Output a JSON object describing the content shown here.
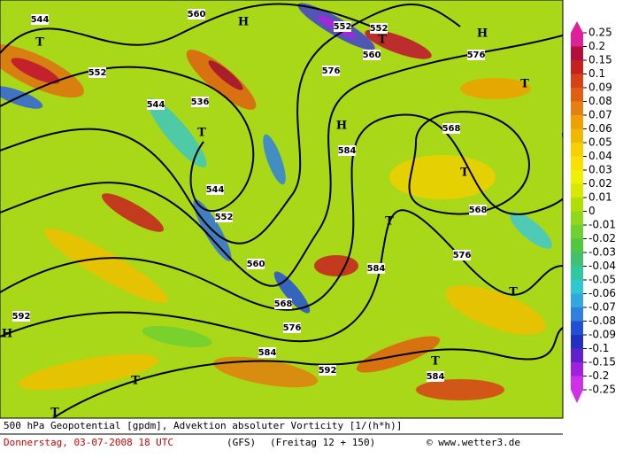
{
  "map": {
    "contour_labels": [
      "544",
      "560",
      "552",
      "552",
      "552",
      "536",
      "544",
      "576",
      "560",
      "544",
      "552",
      "576",
      "584",
      "560",
      "568",
      "568",
      "576",
      "584",
      "584",
      "568",
      "592",
      "592",
      "576",
      "584"
    ],
    "pressure_centers": [
      "T",
      "H",
      "T",
      "H",
      "T",
      "H",
      "T",
      "T",
      "H",
      "T",
      "T",
      "T",
      "T",
      "T"
    ]
  },
  "colorbar": {
    "ticks": [
      0.25,
      0.2,
      0.15,
      0.1,
      0.09,
      0.08,
      0.07,
      0.06,
      0.05,
      0.04,
      0.03,
      0.02,
      0.01,
      0,
      -0.01,
      -0.02,
      -0.03,
      -0.04,
      -0.05,
      -0.06,
      -0.07,
      -0.08,
      -0.09,
      -0.1,
      -0.15,
      -0.2,
      -0.25
    ],
    "colors": [
      "#e0209a",
      "#b0103a",
      "#c82020",
      "#d84018",
      "#e06010",
      "#e88010",
      "#f0a000",
      "#f0b800",
      "#f8d000",
      "#f8e000",
      "#f0f000",
      "#d8e800",
      "#b0e000",
      "#90d820",
      "#70d030",
      "#50c840",
      "#40c070",
      "#30c8a0",
      "#30c8d0",
      "#30a8e0",
      "#3080e0",
      "#2050d8",
      "#2030c0",
      "#6020d0",
      "#a020e0",
      "#d030e8"
    ]
  },
  "footer": {
    "line1": "500 hPa Geopotential [gpdm], Advektion absoluter Vorticity [1/(h*h)]",
    "date": "Donnerstag, 03-07-2008  18 UTC",
    "model": "(GFS)",
    "run": "(Freitag 12 + 150)",
    "credit": "© www.wetter3.de"
  }
}
